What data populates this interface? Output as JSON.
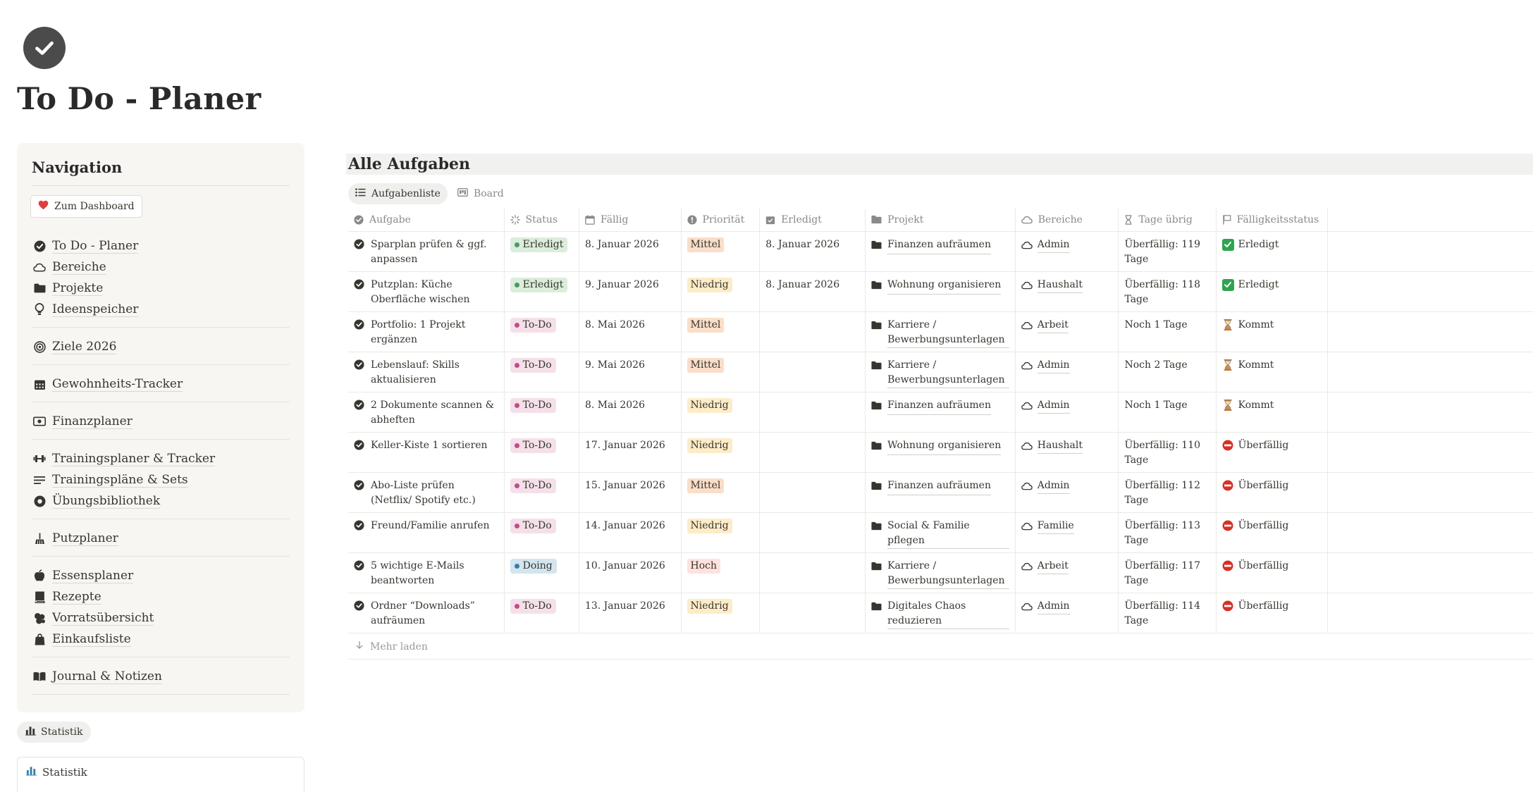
{
  "page": {
    "title": "To Do - Planer",
    "icon": "check-circle-icon"
  },
  "sidebar": {
    "title": "Navigation",
    "dashboard_button": "Zum Dashboard",
    "groups": [
      [
        {
          "label": "To Do - Planer",
          "icon": "check-circle-icon"
        },
        {
          "label": "Bereiche",
          "icon": "cloud-icon"
        },
        {
          "label": "Projekte",
          "icon": "folder-icon"
        },
        {
          "label": "Ideenspeicher",
          "icon": "lightbulb-icon"
        }
      ],
      [
        {
          "label": "Ziele 2026",
          "icon": "target-icon"
        }
      ],
      [
        {
          "label": "Gewohnheits-Tracker",
          "icon": "calendar-icon"
        }
      ],
      [
        {
          "label": "Finanzplaner",
          "icon": "money-icon"
        }
      ],
      [
        {
          "label": "Trainingsplaner & Tracker",
          "icon": "dumbbell-icon"
        },
        {
          "label": "Trainingspläne & Sets",
          "icon": "lines-icon"
        },
        {
          "label": "Übungsbibliothek",
          "icon": "record-icon"
        }
      ],
      [
        {
          "label": "Putzplaner",
          "icon": "broom-icon"
        }
      ],
      [
        {
          "label": "Essensplaner",
          "icon": "apple-icon"
        },
        {
          "label": "Rezepte",
          "icon": "book-icon"
        },
        {
          "label": "Vorratsübersicht",
          "icon": "jar-icon"
        },
        {
          "label": "Einkaufsliste",
          "icon": "bag-icon"
        }
      ],
      [
        {
          "label": "Journal & Notizen",
          "icon": "open-book-icon"
        }
      ]
    ],
    "stat_pill": "Statistik",
    "stat_box_label": "Statistik"
  },
  "main": {
    "section_title": "Alle Aufgaben",
    "tabs": [
      {
        "label": "Aufgabenliste",
        "active": true
      },
      {
        "label": "Board",
        "active": false
      }
    ],
    "columns": [
      "Aufgabe",
      "Status",
      "Fällig",
      "Priorität",
      "Erledigt",
      "Projekt",
      "Bereiche",
      "Tage übrig",
      "Fälligkeitsstatus"
    ],
    "rows": [
      {
        "task": "Sparplan prüfen & ggf. anpassen",
        "status": "Erledigt",
        "due": "8. Januar 2026",
        "priority": "Mittel",
        "done": "8. Januar 2026",
        "project": "Finanzen aufräumen",
        "area": "Admin",
        "days": "Überfällig: 119 Tage",
        "state": "Erledigt",
        "state_icon": "check-mark-icon"
      },
      {
        "task": "Putzplan: Küche Oberfläche wischen",
        "status": "Erledigt",
        "due": "9. Januar 2026",
        "priority": "Niedrig",
        "done": "8. Januar 2026",
        "project": "Wohnung organisieren",
        "area": "Haushalt",
        "days": "Überfällig: 118 Tage",
        "state": "Erledigt",
        "state_icon": "check-mark-icon"
      },
      {
        "task": "Portfolio: 1 Projekt ergänzen",
        "status": "To-Do",
        "due": "8. Mai 2026",
        "priority": "Mittel",
        "done": "",
        "project": "Karriere / Bewerbungsunterlagen",
        "area": "Arbeit",
        "days": "Noch 1 Tage",
        "state": "Kommt",
        "state_icon": "hourglass-icon"
      },
      {
        "task": "Lebenslauf: Skills aktualisieren",
        "status": "To-Do",
        "due": "9. Mai 2026",
        "priority": "Mittel",
        "done": "",
        "project": "Karriere / Bewerbungsunterlagen",
        "area": "Admin",
        "days": "Noch 2 Tage",
        "state": "Kommt",
        "state_icon": "hourglass-icon"
      },
      {
        "task": "2 Dokumente scannen & abheften",
        "status": "To-Do",
        "due": "8. Mai 2026",
        "priority": "Niedrig",
        "done": "",
        "project": "Finanzen aufräumen",
        "area": "Admin",
        "days": "Noch 1 Tage",
        "state": "Kommt",
        "state_icon": "hourglass-icon"
      },
      {
        "task": "Keller-Kiste 1 sortieren",
        "status": "To-Do",
        "due": "17. Januar 2026",
        "priority": "Niedrig",
        "done": "",
        "project": "Wohnung organisieren",
        "area": "Haushalt",
        "days": "Überfällig: 110 Tage",
        "state": "Überfällig",
        "state_icon": "no-entry-icon"
      },
      {
        "task": "Abo-Liste prüfen (Netflix/ Spotify etc.)",
        "status": "To-Do",
        "due": "15. Januar 2026",
        "priority": "Mittel",
        "done": "",
        "project": "Finanzen aufräumen",
        "area": "Admin",
        "days": "Überfällig: 112 Tage",
        "state": "Überfällig",
        "state_icon": "no-entry-icon"
      },
      {
        "task": "Freund/Familie anrufen",
        "status": "To-Do",
        "due": "14. Januar 2026",
        "priority": "Niedrig",
        "done": "",
        "project": "Social & Familie pflegen",
        "area": "Familie",
        "days": "Überfällig: 113 Tage",
        "state": "Überfällig",
        "state_icon": "no-entry-icon"
      },
      {
        "task": "5 wichtige E-Mails beantworten",
        "status": "Doing",
        "due": "10. Januar 2026",
        "priority": "Hoch",
        "done": "",
        "project": "Karriere / Bewerbungsunterlagen",
        "area": "Arbeit",
        "days": "Überfällig: 117 Tage",
        "state": "Überfällig",
        "state_icon": "no-entry-icon"
      },
      {
        "task": "Ordner “Downloads” aufräumen",
        "status": "To-Do",
        "due": "13. Januar 2026",
        "priority": "Niedrig",
        "done": "",
        "project": "Digitales Chaos reduzieren",
        "area": "Admin",
        "days": "Überfällig: 114 Tage",
        "state": "Überfällig",
        "state_icon": "no-entry-icon"
      }
    ],
    "load_more": "Mehr laden"
  },
  "colors": {
    "status": {
      "Erledigt": {
        "bg": "#dbeddb",
        "dot": "#4f9768"
      },
      "To-Do": {
        "bg": "#f5e0e9",
        "dot": "#c14c8a"
      },
      "Doing": {
        "bg": "#d3e5ef",
        "dot": "#337ea9"
      }
    },
    "priority": {
      "Mittel": "#fadec9",
      "Niedrig": "#fdecc8",
      "Hoch": "#ffe2dd"
    }
  }
}
